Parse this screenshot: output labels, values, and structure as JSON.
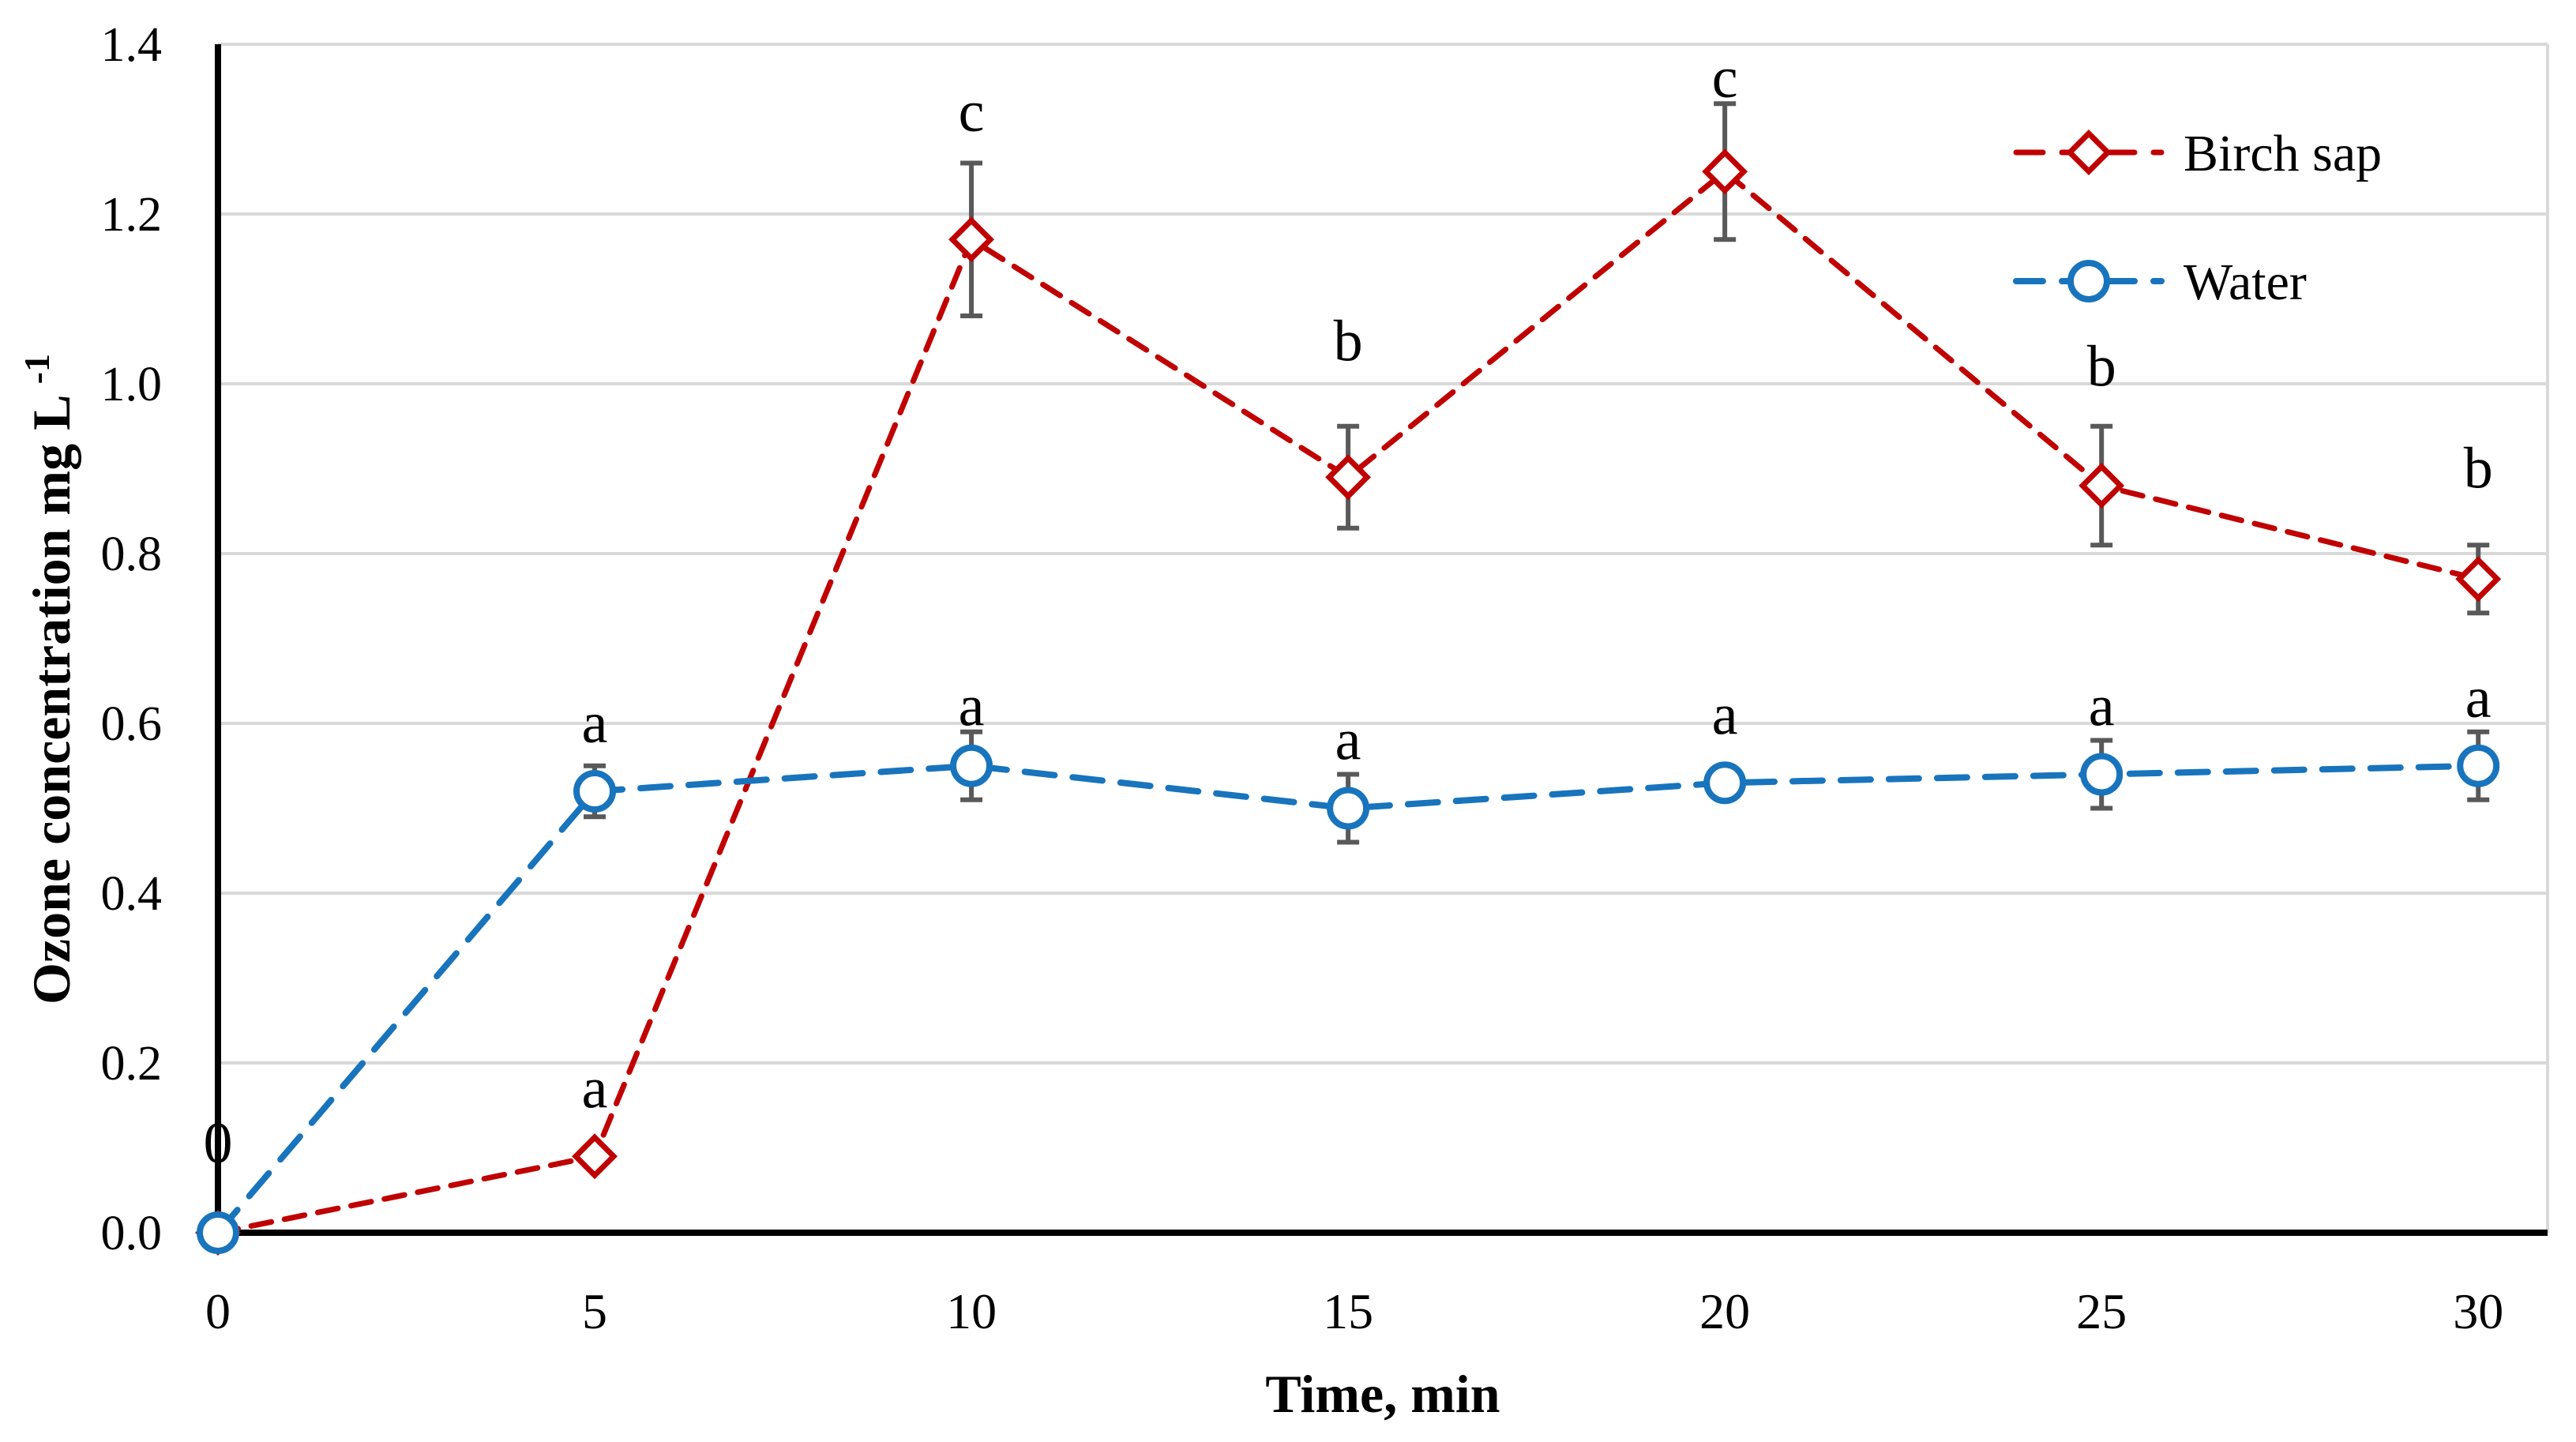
{
  "chart_data": {
    "type": "line",
    "title": "",
    "xlabel": "Time, min",
    "ylabel": "Ozone concentration mg L",
    "ylabel_superscript": "-1",
    "xlim": [
      0,
      30.92
    ],
    "ylim": [
      0,
      1.4
    ],
    "x_ticks": [
      0,
      5,
      10,
      15,
      20,
      25,
      30
    ],
    "y_ticks": [
      0.0,
      0.2,
      0.4,
      0.6,
      0.8,
      1.0,
      1.2,
      1.4
    ],
    "grid": "horizontal",
    "legend_position": "top-right",
    "colors": {
      "axis": "#000000",
      "gridline": "#d9d9d9",
      "error_bar": "#595959",
      "marker_fill": "#ffffff"
    },
    "origin_label": {
      "text": "0",
      "x": 0,
      "y": 0.105
    },
    "series": [
      {
        "name": "Birch sap",
        "color": "#c00000",
        "marker": "diamond",
        "line_style": "dashed",
        "dash": "26 17",
        "line_width": 7,
        "x": [
          0,
          5,
          10,
          15,
          20,
          25,
          30
        ],
        "y": [
          0,
          0.09,
          1.17,
          0.89,
          1.25,
          0.88,
          0.77
        ],
        "error": [
          null,
          null,
          0.09,
          0.06,
          0.08,
          0.07,
          0.04
        ],
        "point_labels": [
          null,
          "a",
          "c",
          "b",
          "c",
          "b",
          "b"
        ],
        "point_label_y": [
          null,
          0.17,
          1.32,
          1.05,
          1.36,
          1.02,
          0.9
        ]
      },
      {
        "name": "Water",
        "color": "#1874bc",
        "marker": "circle",
        "line_style": "dashed",
        "dash": "38 23",
        "line_width": 8,
        "x": [
          0,
          5,
          10,
          15,
          20,
          25,
          30
        ],
        "y": [
          0,
          0.52,
          0.55,
          0.5,
          0.53,
          0.54,
          0.55
        ],
        "error": [
          null,
          0.03,
          0.04,
          0.04,
          null,
          0.04,
          0.04
        ],
        "point_labels": [
          null,
          "a",
          "a",
          "a",
          "a",
          "a",
          "a"
        ],
        "point_label_y": [
          null,
          0.6,
          0.62,
          0.58,
          0.61,
          0.62,
          0.63
        ]
      }
    ]
  }
}
